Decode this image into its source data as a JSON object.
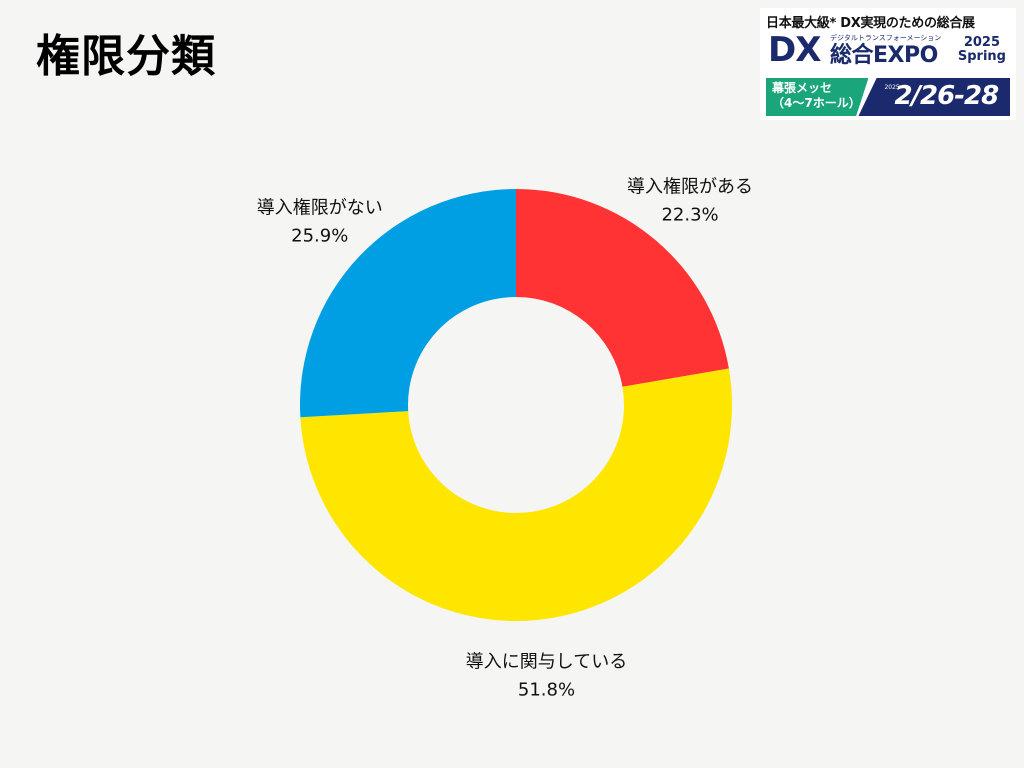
{
  "page": {
    "title": "権限分類"
  },
  "badge": {
    "headline": "日本最大級* DX実現のための総合展",
    "dx": "DX",
    "subtitle": "デジタルトランスフォーメーション",
    "expo": "総合EXPO",
    "year_line1": "2025",
    "year_line2": "Spring",
    "venue": "幕張メッセ（4〜7ホール）",
    "date_year": "2025",
    "dates": "2/26-28",
    "colors": {
      "navy": "#1a2a6c",
      "green": "#1aa57a"
    }
  },
  "chart_data": {
    "type": "pie",
    "style": "donut",
    "title": "",
    "slices": [
      {
        "label": "導入権限がある",
        "value": 22.3,
        "value_label": "22.3%",
        "color": "#ff3333"
      },
      {
        "label": "導入に関与している",
        "value": 51.8,
        "value_label": "51.8%",
        "color": "#ffe600"
      },
      {
        "label": "導入権限がない",
        "value": 25.9,
        "value_label": "25.9%",
        "color": "#009fe3"
      }
    ],
    "start_angle_deg": 0,
    "direction": "clockwise",
    "legend": "none"
  }
}
